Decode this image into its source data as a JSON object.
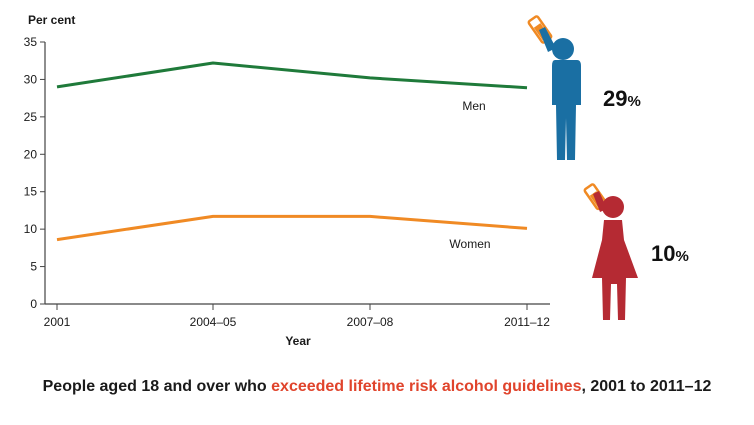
{
  "chart_data": {
    "type": "line",
    "ylabel": "Per cent",
    "xlabel": "Year",
    "ylim": [
      0,
      35
    ],
    "yticks": [
      0,
      5,
      10,
      15,
      20,
      25,
      30,
      35
    ],
    "categories": [
      "2001",
      "2004–05",
      "2007–08",
      "2011–12"
    ],
    "grid": false,
    "series": [
      {
        "name": "Men",
        "color": "#1f7a3a",
        "values": [
          29,
          32.2,
          30.2,
          28.9
        ]
      },
      {
        "name": "Women",
        "color": "#f08a24",
        "values": [
          8.6,
          11.7,
          11.7,
          10.1
        ]
      }
    ]
  },
  "figures": [
    {
      "series": "Men",
      "icon": "man-drinking-icon",
      "color": "#1a6fa3",
      "value_text": "29",
      "unit": "%"
    },
    {
      "series": "Women",
      "icon": "woman-drinking-icon",
      "color": "#b52a33",
      "value_text": "10",
      "unit": "%"
    }
  ],
  "caption": {
    "before": "People aged 18 and over who ",
    "highlight": "exceeded lifetime risk alcohol guidelines",
    "after": ", 2001 to 2011–12",
    "highlight_color": "#e0442c"
  }
}
